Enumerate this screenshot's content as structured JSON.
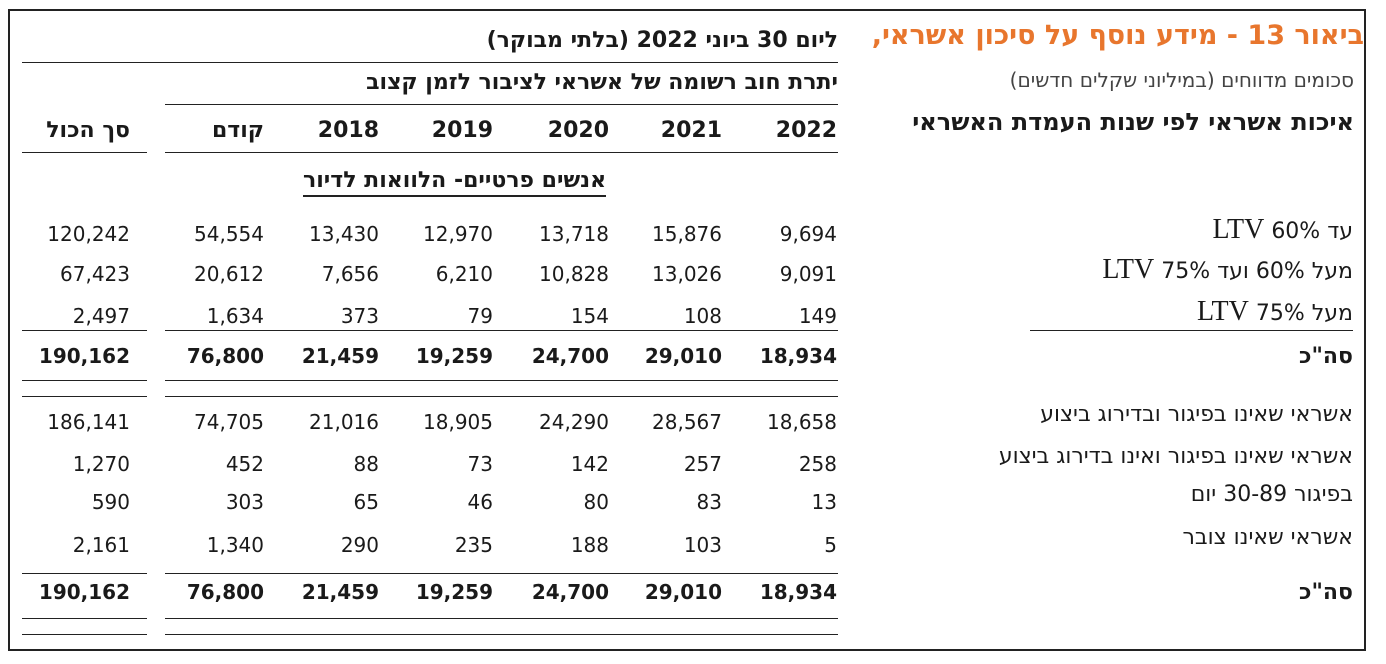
{
  "header": {
    "title": "ביאור 13 - מידע נוסף על סיכון אשראי,",
    "subtitle": "סכומים מדווחים (במיליוני שקלים חדשים)",
    "section_title": "איכות אשראי לפי שנות העמדת האשראי",
    "date_header": "ליום 30 ביוני 2022 (בלתי מבוקר)",
    "group_header": "יתרת חוב רשומה של אשראי לציבור לזמן קצוב",
    "subgroup": "אנשים פרטיים- הלוואות לדיור"
  },
  "columns": [
    "2022",
    "2021",
    "2020",
    "2019",
    "2018",
    "קודם",
    "סך הכול"
  ],
  "rows": [
    {
      "label": "עד 60%",
      "ltv": "LTV",
      "values": [
        "9,694",
        "15,876",
        "13,718",
        "12,970",
        "13,430",
        "54,554",
        "120,242"
      ]
    },
    {
      "label": "מעל 60% ועד 75%",
      "ltv": "LTV",
      "values": [
        "9,091",
        "13,026",
        "10,828",
        "6,210",
        "7,656",
        "20,612",
        "67,423"
      ]
    },
    {
      "label": "מעל 75%",
      "ltv": "LTV",
      "values": [
        "149",
        "108",
        "154",
        "79",
        "373",
        "1,634",
        "2,497"
      ]
    },
    {
      "label": "סה\"כ",
      "bold": true,
      "values": [
        "18,934",
        "29,010",
        "24,700",
        "19,259",
        "21,459",
        "76,800",
        "190,162"
      ]
    },
    {
      "label": "אשראי שאינו בפיגור ובדירוג ביצוע",
      "values": [
        "18,658",
        "28,567",
        "24,290",
        "18,905",
        "21,016",
        "74,705",
        "186,141"
      ]
    },
    {
      "label": "אשראי שאינו בפיגור ואינו בדירוג ביצוע",
      "values": [
        "258",
        "257",
        "142",
        "73",
        "88",
        "452",
        "1,270"
      ]
    },
    {
      "label": "בפיגור 30-89 יום",
      "values": [
        "13",
        "83",
        "80",
        "46",
        "65",
        "303",
        "590"
      ]
    },
    {
      "label": "אשראי שאינו צובר",
      "values": [
        "5",
        "103",
        "188",
        "235",
        "290",
        "1,340",
        "2,161"
      ]
    },
    {
      "label": "סה\"כ",
      "bold": true,
      "values": [
        "18,934",
        "29,010",
        "24,700",
        "19,259",
        "21,459",
        "76,800",
        "190,162"
      ]
    }
  ]
}
